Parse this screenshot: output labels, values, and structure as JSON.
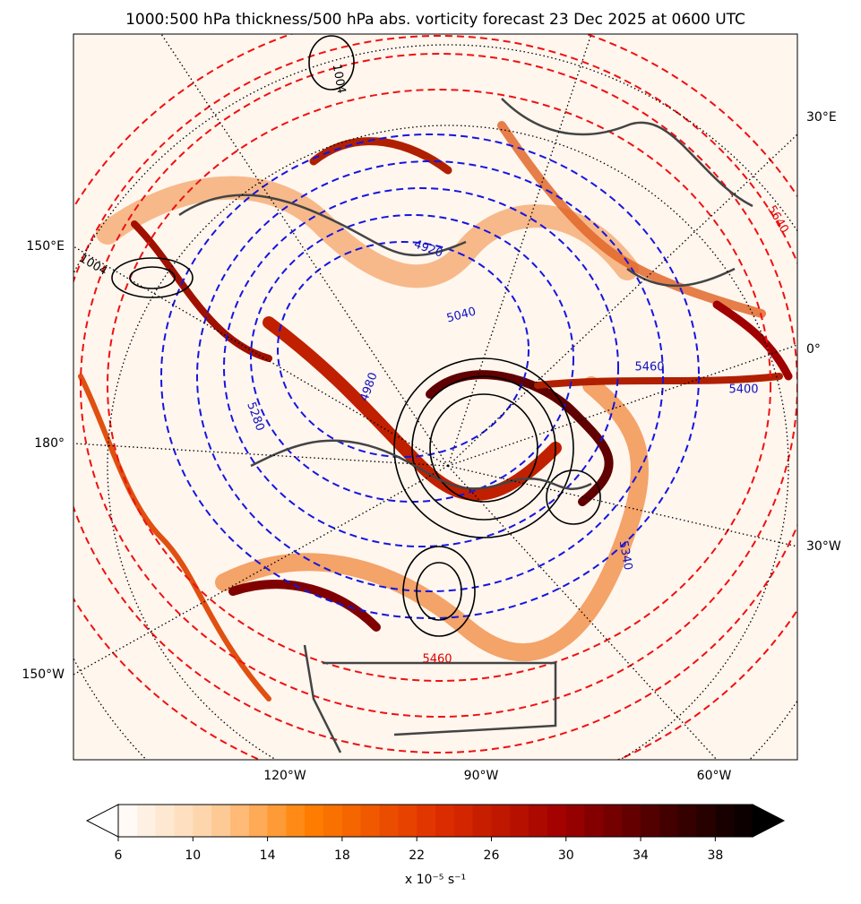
{
  "title": "1000:500 hPa thickness/500 hPa abs. vorticity forecast 23 Dec 2025 at 0600 UTC",
  "map": {
    "lon_labels": [
      "30°E",
      "0°",
      "30°W",
      "150°E",
      "180°",
      "150°W",
      "120°W",
      "90°W",
      "60°W"
    ],
    "contour_labels": [
      "1004",
      "1004",
      "5640",
      "5460",
      "4920",
      "5040",
      "5280",
      "5340",
      "4980",
      "5460",
      "5400"
    ]
  },
  "colorbar": {
    "lim": [
      6,
      40
    ],
    "ticks": [
      6,
      10,
      14,
      18,
      22,
      26,
      30,
      34,
      38
    ],
    "label": "x 10⁻⁵ s⁻¹"
  }
}
